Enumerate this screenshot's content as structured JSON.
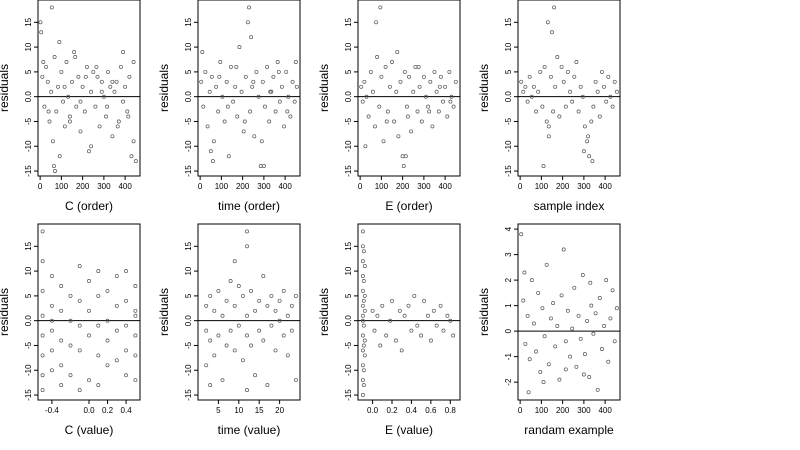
{
  "chart_data": [
    {
      "type": "scatter",
      "xlabel": "C (order)",
      "ylabel": "residuals",
      "xlim": [
        -10,
        470
      ],
      "ylim": [
        -16,
        19.5
      ],
      "xticks": [
        0,
        100,
        200,
        300,
        400
      ],
      "xtick_labels": [
        "0",
        "100",
        "200",
        "300",
        "400"
      ],
      "yticks": [
        -15,
        -10,
        -5,
        0,
        5,
        10,
        15
      ],
      "ytick_labels": [
        "-15",
        "-10",
        "-5",
        "0.0",
        "5",
        "10",
        "15"
      ],
      "hline": 0,
      "points": {
        "x": [
          2,
          5,
          10,
          20,
          28,
          36,
          44,
          52,
          60,
          68,
          76,
          84,
          92,
          100,
          108,
          116,
          124,
          132,
          140,
          150,
          160,
          170,
          180,
          190,
          200,
          210,
          220,
          230,
          240,
          250,
          260,
          270,
          280,
          290,
          300,
          310,
          320,
          330,
          340,
          350,
          360,
          370,
          380,
          390,
          400,
          410,
          420,
          430,
          440,
          450,
          15,
          40,
          65,
          90,
          115,
          140,
          165,
          190,
          215,
          240,
          265,
          290,
          315,
          340,
          365,
          390,
          415,
          440,
          55,
          70
        ],
        "y": [
          15,
          13,
          4,
          -2,
          6,
          3,
          -5,
          1,
          -9,
          8,
          -3,
          2,
          -12,
          5,
          -1,
          -6,
          7,
          0,
          -4,
          3,
          9,
          -2,
          4,
          -7,
          2,
          -3,
          6,
          -11,
          1,
          5,
          -2,
          4,
          -6,
          3,
          0,
          -4,
          5,
          2,
          -8,
          1,
          3,
          -5,
          6,
          -1,
          2,
          -3,
          4,
          -12,
          -9,
          -13,
          7,
          -3,
          -14,
          11,
          2,
          -5,
          8,
          -1,
          4,
          -10,
          6,
          1,
          -2,
          3,
          -6,
          9,
          -4,
          7,
          18,
          -15
        ]
      }
    },
    {
      "type": "scatter",
      "xlabel": "time (order)",
      "ylabel": "residuals",
      "xlim": [
        -10,
        470
      ],
      "ylim": [
        -16,
        19.5
      ],
      "xticks": [
        0,
        100,
        200,
        300,
        400
      ],
      "xtick_labels": [
        "0",
        "100",
        "200",
        "300",
        "400"
      ],
      "yticks": [
        -15,
        -10,
        -5,
        0,
        5,
        10,
        15
      ],
      "ytick_labels": [
        "-15",
        "-10",
        "-5",
        "0.0",
        "5",
        "10",
        "15"
      ],
      "hline": 0,
      "points": {
        "x": [
          5,
          15,
          25,
          35,
          45,
          55,
          65,
          75,
          85,
          95,
          105,
          115,
          125,
          135,
          145,
          155,
          165,
          175,
          185,
          195,
          205,
          215,
          225,
          235,
          245,
          255,
          265,
          275,
          285,
          295,
          305,
          315,
          325,
          335,
          345,
          355,
          365,
          375,
          385,
          395,
          405,
          415,
          425,
          435,
          445,
          455,
          10,
          50,
          90,
          130,
          170,
          210,
          250,
          290,
          330,
          370,
          410,
          450,
          230,
          240,
          60,
          300
        ],
        "y": [
          3,
          -2,
          5,
          -6,
          1,
          4,
          -9,
          2,
          -3,
          7,
          0,
          -5,
          3,
          -12,
          6,
          -1,
          2,
          -4,
          10,
          1,
          -7,
          4,
          15,
          -3,
          2,
          -8,
          5,
          0,
          -14,
          3,
          -2,
          6,
          -5,
          1,
          4,
          -3,
          7,
          -1,
          2,
          -6,
          5,
          0,
          -4,
          3,
          -1,
          2,
          9,
          -11,
          4,
          -2,
          6,
          -5,
          3,
          -9,
          1,
          5,
          -3,
          7,
          18,
          12,
          -13,
          -14
        ]
      }
    },
    {
      "type": "scatter",
      "xlabel": "E (order)",
      "ylabel": "residuals",
      "xlim": [
        -10,
        470
      ],
      "ylim": [
        -16,
        19.5
      ],
      "xticks": [
        0,
        100,
        200,
        300,
        400
      ],
      "xtick_labels": [
        "0",
        "100",
        "200",
        "300",
        "400"
      ],
      "yticks": [
        -15,
        -10,
        -5,
        0,
        5,
        10,
        15
      ],
      "ytick_labels": [
        "-15",
        "-10",
        "-5",
        "0.0",
        "5",
        "10",
        "15"
      ],
      "hline": 0,
      "points": {
        "x": [
          5,
          12,
          20,
          30,
          40,
          50,
          60,
          70,
          80,
          90,
          100,
          110,
          120,
          130,
          140,
          150,
          160,
          170,
          180,
          190,
          200,
          210,
          220,
          230,
          240,
          250,
          260,
          270,
          280,
          290,
          300,
          310,
          320,
          330,
          340,
          350,
          360,
          370,
          380,
          390,
          400,
          410,
          420,
          430,
          440,
          450,
          25,
          75,
          125,
          175,
          225,
          275,
          325,
          375,
          425,
          95,
          205,
          215
        ],
        "y": [
          2,
          -1,
          3,
          0,
          -4,
          5,
          1,
          -6,
          8,
          -2,
          4,
          -9,
          6,
          -3,
          2,
          7,
          -5,
          1,
          -8,
          3,
          -12,
          5,
          -2,
          4,
          -7,
          1,
          6,
          -3,
          2,
          -5,
          4,
          0,
          -2,
          3,
          -6,
          5,
          1,
          -3,
          4,
          -1,
          2,
          -4,
          5,
          0,
          -2,
          3,
          -10,
          15,
          -5,
          9,
          -4,
          6,
          -3,
          2,
          -1,
          18,
          -14,
          -12
        ]
      }
    },
    {
      "type": "scatter",
      "xlabel": "sample index",
      "ylabel": "residuals",
      "xlim": [
        -10,
        470
      ],
      "ylim": [
        -16,
        19.5
      ],
      "xticks": [
        0,
        100,
        200,
        300,
        400
      ],
      "xtick_labels": [
        "0",
        "100",
        "200",
        "300",
        "400"
      ],
      "yticks": [
        -15,
        -10,
        -5,
        0,
        5,
        10,
        15
      ],
      "ytick_labels": [
        "-15",
        "-10",
        "-5",
        "0.0",
        "5",
        "10",
        "15"
      ],
      "hline": 0,
      "points": {
        "x": [
          5,
          15,
          25,
          35,
          45,
          55,
          65,
          75,
          85,
          95,
          105,
          115,
          125,
          135,
          145,
          155,
          165,
          175,
          185,
          195,
          205,
          215,
          225,
          235,
          245,
          255,
          265,
          275,
          285,
          295,
          305,
          315,
          325,
          335,
          345,
          355,
          365,
          375,
          385,
          395,
          405,
          415,
          425,
          435,
          445,
          455,
          110,
          130,
          150,
          300,
          320,
          340,
          135,
          160
        ],
        "y": [
          3,
          1,
          2,
          -1,
          4,
          0,
          2,
          -3,
          1,
          5,
          -2,
          6,
          -5,
          -8,
          4,
          -3,
          2,
          8,
          -4,
          6,
          3,
          -2,
          5,
          1,
          -1,
          4,
          7,
          -3,
          2,
          0,
          -6,
          -9,
          -12,
          -5,
          -2,
          3,
          1,
          -4,
          5,
          2,
          -1,
          4,
          0,
          -2,
          3,
          1,
          -14,
          15,
          13,
          -11,
          -8,
          -13,
          -6,
          18
        ]
      }
    },
    {
      "type": "scatter",
      "xlabel": "C (value)",
      "ylabel": "residuals",
      "xlim": [
        -0.55,
        0.55
      ],
      "ylim": [
        -16,
        19.5
      ],
      "xticks": [
        -0.4,
        0.0,
        0.2,
        0.4
      ],
      "xtick_labels": [
        "-0.4",
        "0.0",
        "0.2",
        "0.4"
      ],
      "yticks": [
        -15,
        -10,
        -5,
        0,
        5,
        10,
        15
      ],
      "ytick_labels": [
        "-15",
        "-10",
        "-5",
        "0.0",
        "5",
        "10",
        "15"
      ],
      "hline": 0,
      "points": {
        "x": [
          -0.5,
          -0.5,
          -0.5,
          -0.5,
          -0.5,
          -0.5,
          -0.5,
          -0.5,
          -0.4,
          -0.4,
          -0.4,
          -0.4,
          -0.4,
          -0.4,
          -0.3,
          -0.3,
          -0.3,
          -0.3,
          -0.3,
          -0.2,
          -0.2,
          -0.2,
          -0.2,
          -0.1,
          -0.1,
          -0.1,
          -0.1,
          -0.1,
          0.0,
          0.0,
          0.0,
          0.0,
          0.1,
          0.1,
          0.1,
          0.1,
          0.1,
          0.2,
          0.2,
          0.2,
          0.2,
          0.3,
          0.3,
          0.3,
          0.3,
          0.4,
          0.4,
          0.4,
          0.4,
          0.4,
          0.5,
          0.5,
          0.5,
          0.5,
          0.5,
          0.5
        ],
        "y": [
          18,
          12,
          6,
          1,
          -3,
          -7,
          -11,
          -14,
          9,
          3,
          -2,
          -6,
          -10,
          0,
          7,
          2,
          -4,
          -9,
          -13,
          5,
          0,
          -5,
          -11,
          11,
          4,
          -1,
          -6,
          -14,
          8,
          2,
          -3,
          -12,
          10,
          5,
          -1,
          -7,
          -13,
          6,
          0,
          -4,
          -9,
          9,
          3,
          -2,
          -8,
          10,
          4,
          -1,
          -6,
          -11,
          7,
          2,
          -3,
          -7,
          -12,
          1
        ]
      }
    },
    {
      "type": "scatter",
      "xlabel": "time (value)",
      "ylabel": "residuals",
      "xlim": [
        0,
        25
      ],
      "ylim": [
        -16,
        19.5
      ],
      "xticks": [
        5,
        10,
        15,
        20
      ],
      "xtick_labels": [
        "5",
        "10",
        "15",
        "20"
      ],
      "yticks": [
        -15,
        -10,
        -5,
        0,
        5,
        10,
        15
      ],
      "ytick_labels": [
        "-15",
        "-10",
        "-5",
        "0.0",
        "5",
        "10",
        "15"
      ],
      "hline": 0,
      "points": {
        "x": [
          2,
          2,
          2,
          3,
          3,
          4,
          4,
          5,
          5,
          6,
          6,
          7,
          7,
          8,
          8,
          9,
          9,
          10,
          10,
          11,
          11,
          12,
          12,
          12,
          13,
          13,
          14,
          14,
          15,
          15,
          16,
          16,
          17,
          17,
          18,
          18,
          19,
          19,
          20,
          20,
          21,
          21,
          22,
          22,
          23,
          23,
          24,
          24,
          12,
          12,
          3,
          9
        ],
        "y": [
          3,
          -2,
          -9,
          5,
          -4,
          2,
          -7,
          6,
          -3,
          1,
          -12,
          4,
          -5,
          8,
          -2,
          3,
          -6,
          7,
          -1,
          5,
          -8,
          15,
          -3,
          1,
          6,
          -5,
          2,
          -11,
          4,
          -2,
          9,
          -4,
          3,
          -13,
          5,
          -1,
          2,
          -6,
          4,
          0,
          -3,
          6,
          -7,
          1,
          3,
          -2,
          5,
          -12,
          18,
          -14,
          -13,
          12
        ]
      }
    },
    {
      "type": "scatter",
      "xlabel": "E (value)",
      "ylabel": "residuals",
      "xlim": [
        -0.15,
        0.9
      ],
      "ylim": [
        -16,
        19.5
      ],
      "xticks": [
        0.0,
        0.2,
        0.4,
        0.6,
        0.8
      ],
      "xtick_labels": [
        "0.0",
        "0.2",
        "0.4",
        "0.6",
        "0.8"
      ],
      "yticks": [
        -15,
        -10,
        -5,
        0,
        5,
        10,
        15
      ],
      "ytick_labels": [
        "-15",
        "-10",
        "-5",
        "0.0",
        "5",
        "10",
        "15"
      ],
      "hline": 0,
      "points": {
        "x": [
          -0.1,
          -0.1,
          -0.1,
          -0.1,
          -0.1,
          -0.1,
          -0.1,
          -0.1,
          -0.1,
          -0.1,
          -0.1,
          -0.1,
          -0.1,
          -0.09,
          -0.09,
          -0.09,
          -0.09,
          -0.09,
          -0.09,
          -0.09,
          -0.08,
          -0.08,
          -0.08,
          -0.08,
          -0.08,
          0.0,
          0.02,
          0.05,
          0.08,
          0.1,
          0.14,
          0.18,
          0.2,
          0.24,
          0.28,
          0.3,
          0.33,
          0.37,
          0.4,
          0.43,
          0.46,
          0.5,
          0.53,
          0.57,
          0.6,
          0.63,
          0.66,
          0.7,
          0.73,
          0.77,
          0.8,
          0.83
        ],
        "y": [
          18,
          15,
          12,
          9,
          6,
          3,
          0,
          -3,
          -6,
          -9,
          -12,
          -15,
          1,
          14,
          8,
          4,
          -1,
          -5,
          -10,
          -13,
          11,
          2,
          -4,
          -7,
          5,
          2,
          -2,
          1,
          -5,
          3,
          -3,
          0,
          4,
          -4,
          2,
          -6,
          1,
          3,
          -2,
          5,
          -1,
          -3,
          4,
          1,
          -4,
          2,
          -1,
          3,
          -2,
          1,
          0,
          -3
        ]
      }
    },
    {
      "type": "scatter",
      "xlabel": "randam example",
      "ylabel": "residuals",
      "xlim": [
        -10,
        470
      ],
      "ylim": [
        -2.7,
        4.2
      ],
      "xticks": [
        0,
        100,
        200,
        300,
        400
      ],
      "xtick_labels": [
        "0",
        "100",
        "200",
        "300",
        "400"
      ],
      "yticks": [
        -2,
        -1,
        0,
        1,
        2,
        3,
        4
      ],
      "ytick_labels": [
        "-2",
        "-1",
        "0",
        "1",
        "2",
        "3",
        "4"
      ],
      "hline": 0,
      "points": {
        "x": [
          5,
          15,
          25,
          35,
          45,
          55,
          65,
          75,
          85,
          95,
          105,
          115,
          125,
          135,
          145,
          155,
          165,
          175,
          185,
          195,
          205,
          215,
          225,
          235,
          245,
          255,
          265,
          275,
          285,
          295,
          305,
          315,
          325,
          335,
          345,
          355,
          365,
          375,
          385,
          395,
          405,
          415,
          425,
          435,
          445,
          455,
          20,
          40,
          110,
          215,
          300,
          330
        ],
        "y": [
          3.8,
          1.2,
          -0.5,
          0.6,
          -1.1,
          2.0,
          0.3,
          -0.8,
          1.5,
          -1.6,
          0.9,
          -0.2,
          2.6,
          -1.3,
          0.5,
          1.1,
          -0.6,
          0.2,
          -1.9,
          1.4,
          3.2,
          -0.4,
          0.8,
          -1.0,
          0.1,
          1.7,
          -1.4,
          0.6,
          -0.3,
          2.2,
          -0.9,
          0.4,
          -1.8,
          1.0,
          -0.1,
          0.7,
          -2.3,
          1.3,
          -0.7,
          0.2,
          2.0,
          -1.2,
          0.5,
          1.6,
          -0.4,
          0.9,
          2.3,
          -2.4,
          -2.0,
          -1.5,
          -1.7,
          1.9
        ]
      }
    }
  ]
}
